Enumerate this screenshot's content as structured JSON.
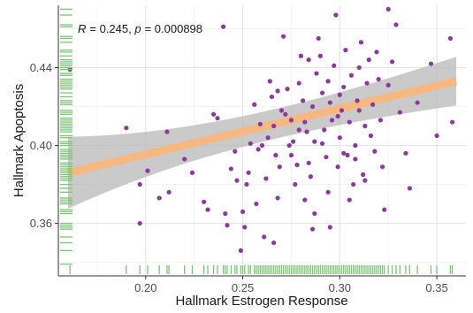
{
  "chart_data": {
    "type": "scatter",
    "xlabel": "Hallmark Estrogen Response",
    "ylabel": "Hallmark Apoptosis",
    "annotation": {
      "r_label": "R",
      "r_value": "= 0.245, ",
      "p_label": "p",
      "p_value": "= 0.000898"
    },
    "xlim": [
      0.155,
      0.365
    ],
    "ylim": [
      0.333,
      0.472
    ],
    "xticks": [
      0.2,
      0.25,
      0.3,
      0.35
    ],
    "xtick_labels": [
      "0.20",
      "0.25",
      "0.30",
      "0.35"
    ],
    "yticks": [
      0.36,
      0.4,
      0.44
    ],
    "ytick_labels": [
      "0.36",
      "0.40",
      "0.44"
    ],
    "grid": true,
    "colors": {
      "points": "#8b3a9b",
      "fit_line": "#f6b880",
      "ci_band": "#b8b8b8",
      "rug": "#7cc576",
      "grid_major": "#e6e6e6",
      "grid_minor": "#f3f3f3"
    },
    "fit": {
      "x": [
        0.16,
        0.36
      ],
      "y": [
        0.386,
        0.433
      ],
      "ci_lower": [
        0.371,
        0.424
      ],
      "ci_upper": [
        0.401,
        0.442
      ]
    },
    "points": [
      [
        0.161,
        0.439
      ],
      [
        0.19,
        0.409
      ],
      [
        0.197,
        0.38
      ],
      [
        0.197,
        0.36
      ],
      [
        0.201,
        0.387
      ],
      [
        0.207,
        0.373
      ],
      [
        0.211,
        0.407
      ],
      [
        0.212,
        0.376
      ],
      [
        0.22,
        0.393
      ],
      [
        0.224,
        0.386
      ],
      [
        0.23,
        0.371
      ],
      [
        0.232,
        0.367
      ],
      [
        0.235,
        0.416
      ],
      [
        0.237,
        0.414
      ],
      [
        0.24,
        0.461
      ],
      [
        0.241,
        0.365
      ],
      [
        0.242,
        0.359
      ],
      [
        0.244,
        0.388
      ],
      [
        0.246,
        0.397
      ],
      [
        0.247,
        0.382
      ],
      [
        0.249,
        0.346
      ],
      [
        0.25,
        0.366
      ],
      [
        0.251,
        0.358
      ],
      [
        0.253,
        0.386
      ],
      [
        0.254,
        0.401
      ],
      [
        0.256,
        0.421
      ],
      [
        0.257,
        0.37
      ],
      [
        0.258,
        0.398
      ],
      [
        0.259,
        0.411
      ],
      [
        0.26,
        0.4
      ],
      [
        0.261,
        0.353
      ],
      [
        0.262,
        0.383
      ],
      [
        0.263,
        0.404
      ],
      [
        0.264,
        0.433
      ],
      [
        0.265,
        0.425
      ],
      [
        0.266,
        0.41
      ],
      [
        0.267,
        0.395
      ],
      [
        0.268,
        0.373
      ],
      [
        0.269,
        0.389
      ],
      [
        0.27,
        0.418
      ],
      [
        0.271,
        0.456
      ],
      [
        0.272,
        0.416
      ],
      [
        0.273,
        0.429
      ],
      [
        0.274,
        0.4
      ],
      [
        0.275,
        0.413
      ],
      [
        0.276,
        0.402
      ],
      [
        0.277,
        0.38
      ],
      [
        0.278,
        0.39
      ],
      [
        0.279,
        0.432
      ],
      [
        0.28,
        0.446
      ],
      [
        0.281,
        0.423
      ],
      [
        0.282,
        0.372
      ],
      [
        0.283,
        0.407
      ],
      [
        0.284,
        0.391
      ],
      [
        0.285,
        0.384
      ],
      [
        0.286,
        0.357
      ],
      [
        0.287,
        0.402
      ],
      [
        0.288,
        0.437
      ],
      [
        0.289,
        0.455
      ],
      [
        0.29,
        0.446
      ],
      [
        0.291,
        0.427
      ],
      [
        0.292,
        0.408
      ],
      [
        0.293,
        0.394
      ],
      [
        0.294,
        0.376
      ],
      [
        0.295,
        0.422
      ],
      [
        0.296,
        0.413
      ],
      [
        0.297,
        0.441
      ],
      [
        0.298,
        0.467
      ],
      [
        0.299,
        0.389
      ],
      [
        0.3,
        0.404
      ],
      [
        0.301,
        0.418
      ],
      [
        0.302,
        0.43
      ],
      [
        0.303,
        0.449
      ],
      [
        0.304,
        0.395
      ],
      [
        0.305,
        0.412
      ],
      [
        0.306,
        0.436
      ],
      [
        0.307,
        0.38
      ],
      [
        0.308,
        0.4
      ],
      [
        0.309,
        0.423
      ],
      [
        0.31,
        0.44
      ],
      [
        0.311,
        0.453
      ],
      [
        0.312,
        0.385
      ],
      [
        0.313,
        0.41
      ],
      [
        0.314,
        0.432
      ],
      [
        0.315,
        0.444
      ],
      [
        0.316,
        0.405
      ],
      [
        0.317,
        0.421
      ],
      [
        0.318,
        0.397
      ],
      [
        0.319,
        0.448
      ],
      [
        0.32,
        0.434
      ],
      [
        0.321,
        0.413
      ],
      [
        0.322,
        0.389
      ],
      [
        0.323,
        0.367
      ],
      [
        0.325,
        0.431
      ],
      [
        0.327,
        0.443
      ],
      [
        0.329,
        0.462
      ],
      [
        0.331,
        0.417
      ],
      [
        0.334,
        0.396
      ],
      [
        0.336,
        0.378
      ],
      [
        0.34,
        0.422
      ],
      [
        0.347,
        0.442
      ],
      [
        0.35,
        0.405
      ],
      [
        0.357,
        0.455
      ],
      [
        0.358,
        0.412
      ],
      [
        0.325,
        0.47
      ],
      [
        0.308,
        0.393
      ],
      [
        0.266,
        0.35
      ],
      [
        0.252,
        0.38
      ],
      [
        0.287,
        0.365
      ],
      [
        0.295,
        0.358
      ],
      [
        0.305,
        0.372
      ],
      [
        0.313,
        0.382
      ],
      [
        0.282,
        0.412
      ],
      [
        0.275,
        0.395
      ],
      [
        0.268,
        0.428
      ],
      [
        0.291,
        0.401
      ],
      [
        0.299,
        0.415
      ],
      [
        0.302,
        0.396
      ],
      [
        0.294,
        0.433
      ],
      [
        0.286,
        0.42
      ],
      [
        0.279,
        0.408
      ],
      [
        0.284,
        0.444
      ],
      [
        0.3,
        0.426
      ],
      [
        0.31,
        0.418
      ]
    ],
    "rug_x": [
      0.161,
      0.19,
      0.197,
      0.201,
      0.207,
      0.211,
      0.212,
      0.22,
      0.224,
      0.23,
      0.232,
      0.235,
      0.237,
      0.24,
      0.241,
      0.242,
      0.244,
      0.246,
      0.247,
      0.249,
      0.25,
      0.251,
      0.253,
      0.254,
      0.256,
      0.257,
      0.258,
      0.259,
      0.26,
      0.261,
      0.262,
      0.263,
      0.264,
      0.265,
      0.266,
      0.267,
      0.268,
      0.269,
      0.27,
      0.271,
      0.272,
      0.273,
      0.274,
      0.275,
      0.276,
      0.277,
      0.278,
      0.279,
      0.28,
      0.281,
      0.282,
      0.283,
      0.284,
      0.285,
      0.286,
      0.287,
      0.288,
      0.289,
      0.29,
      0.291,
      0.292,
      0.293,
      0.294,
      0.295,
      0.296,
      0.297,
      0.298,
      0.299,
      0.3,
      0.301,
      0.302,
      0.303,
      0.304,
      0.305,
      0.306,
      0.307,
      0.308,
      0.309,
      0.31,
      0.311,
      0.312,
      0.313,
      0.314,
      0.315,
      0.316,
      0.317,
      0.318,
      0.319,
      0.32,
      0.321,
      0.322,
      0.323,
      0.325,
      0.327,
      0.329,
      0.331,
      0.334,
      0.336,
      0.34,
      0.347,
      0.35,
      0.357,
      0.358
    ],
    "rug_y": [
      0.339,
      0.346,
      0.35,
      0.353,
      0.357,
      0.358,
      0.359,
      0.36,
      0.365,
      0.366,
      0.367,
      0.37,
      0.371,
      0.372,
      0.373,
      0.376,
      0.378,
      0.38,
      0.382,
      0.383,
      0.384,
      0.385,
      0.386,
      0.387,
      0.388,
      0.389,
      0.39,
      0.391,
      0.393,
      0.394,
      0.395,
      0.396,
      0.397,
      0.398,
      0.4,
      0.401,
      0.402,
      0.404,
      0.405,
      0.407,
      0.408,
      0.409,
      0.41,
      0.411,
      0.412,
      0.413,
      0.414,
      0.416,
      0.417,
      0.418,
      0.421,
      0.422,
      0.423,
      0.425,
      0.427,
      0.429,
      0.43,
      0.431,
      0.432,
      0.433,
      0.434,
      0.436,
      0.437,
      0.439,
      0.44,
      0.441,
      0.442,
      0.443,
      0.444,
      0.446,
      0.448,
      0.449,
      0.453,
      0.455,
      0.456,
      0.461,
      0.462,
      0.467,
      0.47
    ]
  }
}
